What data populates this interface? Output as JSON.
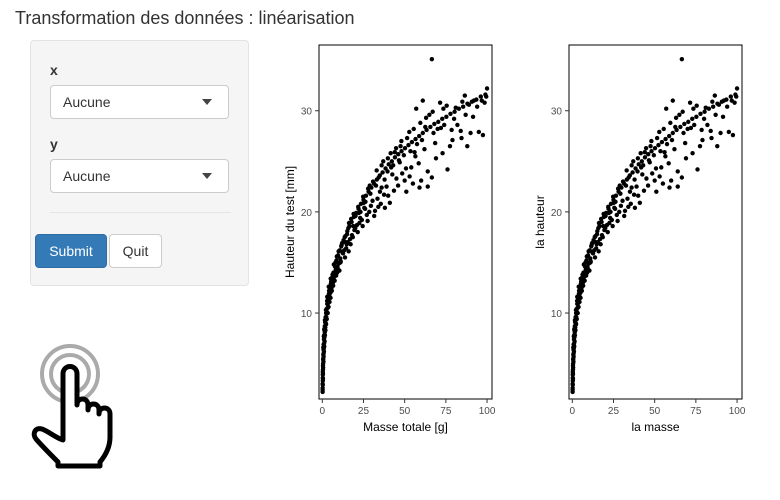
{
  "page": {
    "title": "Transformation des données : linéarisation"
  },
  "sidebar": {
    "x_label": "x",
    "x_value": "Aucune",
    "y_label": "y",
    "y_value": "Aucune",
    "submit_label": "Submit",
    "quit_label": "Quit",
    "primary_color": "#337ab7"
  },
  "hand_icon": "touch-pointer-icon",
  "chart_data": [
    {
      "type": "scatter",
      "xlabel": "Masse totale  [g]",
      "ylabel": "Hauteur du test  [mm]",
      "xlim": [
        -2,
        103
      ],
      "ylim": [
        1.5,
        36.5
      ],
      "x_ticks": [
        0,
        25,
        50,
        75,
        100
      ],
      "y_ticks": [
        10,
        20,
        30
      ],
      "grid": false,
      "note": "approx. 300 points follow h ≈ 7·m^0.33 with scatter; listed points are representative",
      "points": [
        [
          0.2,
          2.2
        ],
        [
          0.2,
          3.0
        ],
        [
          0.3,
          3.6
        ],
        [
          0.3,
          4.2
        ],
        [
          0.4,
          4.8
        ],
        [
          0.5,
          5.4
        ],
        [
          0.6,
          5.9
        ],
        [
          0.7,
          6.4
        ],
        [
          0.8,
          6.9
        ],
        [
          1.0,
          7.4
        ],
        [
          1.1,
          7.8
        ],
        [
          1.3,
          8.3
        ],
        [
          1.5,
          8.7
        ],
        [
          1.7,
          9.1
        ],
        [
          2.0,
          9.6
        ],
        [
          2.3,
          10.0
        ],
        [
          2.6,
          10.4
        ],
        [
          3.0,
          10.9
        ],
        [
          3.5,
          11.4
        ],
        [
          4.0,
          11.9
        ],
        [
          4.6,
          12.4
        ],
        [
          5.2,
          12.9
        ],
        [
          6.0,
          13.5
        ],
        [
          6.8,
          14.0
        ],
        [
          7.7,
          14.6
        ],
        [
          8.6,
          15.2
        ],
        [
          9.6,
          15.7
        ],
        [
          10.6,
          16.2
        ],
        [
          11.7,
          16.7
        ],
        [
          12.9,
          17.2
        ],
        [
          14.0,
          17.6
        ],
        [
          15.2,
          18.1
        ],
        [
          16.5,
          18.6
        ],
        [
          17.8,
          19.0
        ],
        [
          19.2,
          19.5
        ],
        [
          20.5,
          19.9
        ],
        [
          22.0,
          20.3
        ],
        [
          23.5,
          20.8
        ],
        [
          25.0,
          21.2
        ],
        [
          26.5,
          21.6
        ],
        [
          28.1,
          22.0
        ],
        [
          29.8,
          22.4
        ],
        [
          31.4,
          22.8
        ],
        [
          33.1,
          23.2
        ],
        [
          34.9,
          23.6
        ],
        [
          36.6,
          23.9
        ],
        [
          38.4,
          24.3
        ],
        [
          40.3,
          24.7
        ],
        [
          42.2,
          25.0
        ],
        [
          44.1,
          25.4
        ],
        [
          46.1,
          25.7
        ],
        [
          48.1,
          26.0
        ],
        [
          50.2,
          26.3
        ],
        [
          52.3,
          26.6
        ],
        [
          54.4,
          26.9
        ],
        [
          56.6,
          27.2
        ],
        [
          58.8,
          27.5
        ],
        [
          61.0,
          27.8
        ],
        [
          63.3,
          28.1
        ],
        [
          65.6,
          28.4
        ],
        [
          68.0,
          28.7
        ],
        [
          70.4,
          28.9
        ],
        [
          72.8,
          29.2
        ],
        [
          75.3,
          29.4
        ],
        [
          77.8,
          29.7
        ],
        [
          80.3,
          29.9
        ],
        [
          82.9,
          30.2
        ],
        [
          85.5,
          30.4
        ],
        [
          88.1,
          30.7
        ],
        [
          90.8,
          30.9
        ],
        [
          93.5,
          31.1
        ],
        [
          96.2,
          31.4
        ],
        [
          99.0,
          31.6
        ],
        [
          100.0,
          32.2
        ],
        [
          99.5,
          31.4
        ],
        [
          66.5,
          35.1
        ],
        [
          61.0,
          31.0
        ],
        [
          57.0,
          30.2
        ],
        [
          64.0,
          22.5
        ],
        [
          68.5,
          26.8
        ],
        [
          72.0,
          28.3
        ],
        [
          75.5,
          30.5
        ],
        [
          80.0,
          29.2
        ],
        [
          82.0,
          28.6
        ],
        [
          85.0,
          30.9
        ],
        [
          87.0,
          29.6
        ],
        [
          90.0,
          27.8
        ],
        [
          92.0,
          31.0
        ],
        [
          95.0,
          27.9
        ],
        [
          97.5,
          27.6
        ],
        [
          73.0,
          25.8
        ],
        [
          76.0,
          24.2
        ],
        [
          77.5,
          26.5
        ],
        [
          79.0,
          27.1
        ],
        [
          64.0,
          24.0
        ],
        [
          62.0,
          26.2
        ],
        [
          60.0,
          23.1
        ],
        [
          58.5,
          24.8
        ],
        [
          56.5,
          25.5
        ],
        [
          55.0,
          22.8
        ],
        [
          53.0,
          23.5
        ],
        [
          51.0,
          22.0
        ],
        [
          48.5,
          23.8
        ],
        [
          47.0,
          24.9
        ],
        [
          45.0,
          23.3
        ],
        [
          43.5,
          22.1
        ],
        [
          41.0,
          20.9
        ],
        [
          39.0,
          22.5
        ],
        [
          37.5,
          21.7
        ],
        [
          35.5,
          20.8
        ],
        [
          33.5,
          21.3
        ],
        [
          32.0,
          20.1
        ],
        [
          30.5,
          21.1
        ],
        [
          28.5,
          20.0
        ],
        [
          27.0,
          19.7
        ],
        [
          25.5,
          20.4
        ],
        [
          24.0,
          19.2
        ],
        [
          22.5,
          18.9
        ],
        [
          21.0,
          18.7
        ],
        [
          19.5,
          18.2
        ],
        [
          18.0,
          17.7
        ],
        [
          16.8,
          17.3
        ],
        [
          15.5,
          17.0
        ],
        [
          14.5,
          16.4
        ],
        [
          13.3,
          16.2
        ],
        [
          12.2,
          16.0
        ],
        [
          11.2,
          15.1
        ],
        [
          10.1,
          14.9
        ],
        [
          9.2,
          14.6
        ],
        [
          8.2,
          14.3
        ],
        [
          7.3,
          13.6
        ],
        [
          6.4,
          13.0
        ],
        [
          5.6,
          12.5
        ],
        [
          4.9,
          12.0
        ],
        [
          4.3,
          11.7
        ],
        [
          3.7,
          11.0
        ],
        [
          3.2,
          10.5
        ],
        [
          2.8,
          10.1
        ],
        [
          2.4,
          9.6
        ],
        [
          2.1,
          9.0
        ],
        [
          1.8,
          8.6
        ],
        [
          1.5,
          8.1
        ],
        [
          1.3,
          7.6
        ],
        [
          1.1,
          7.0
        ],
        [
          0.9,
          6.5
        ],
        [
          0.8,
          6.0
        ],
        [
          0.6,
          5.5
        ],
        [
          0.5,
          5.0
        ],
        [
          0.4,
          4.4
        ],
        [
          0.3,
          3.9
        ],
        [
          0.3,
          3.3
        ],
        [
          0.2,
          2.6
        ],
        [
          0.6,
          6.6
        ],
        [
          0.9,
          7.7
        ],
        [
          1.2,
          8.4
        ],
        [
          1.6,
          9.3
        ],
        [
          2.2,
          10.3
        ],
        [
          2.9,
          11.2
        ],
        [
          3.9,
          12.6
        ],
        [
          5.1,
          13.4
        ],
        [
          6.2,
          13.8
        ],
        [
          7.0,
          14.8
        ],
        [
          8.8,
          15.6
        ],
        [
          9.9,
          16.1
        ],
        [
          11.5,
          16.6
        ],
        [
          13.6,
          17.5
        ],
        [
          15.8,
          18.4
        ],
        [
          17.5,
          19.3
        ],
        [
          18.8,
          18.6
        ],
        [
          20.2,
          19.6
        ],
        [
          21.8,
          20.5
        ],
        [
          23.2,
          20.0
        ],
        [
          24.8,
          21.5
        ],
        [
          26.2,
          21.0
        ],
        [
          27.8,
          22.3
        ],
        [
          29.2,
          21.8
        ],
        [
          30.8,
          23.0
        ],
        [
          32.6,
          22.6
        ],
        [
          34.2,
          23.4
        ],
        [
          36.0,
          24.6
        ],
        [
          37.8,
          23.2
        ],
        [
          39.6,
          24.0
        ],
        [
          41.5,
          25.8
        ],
        [
          43.0,
          24.6
        ],
        [
          44.8,
          26.3
        ],
        [
          46.5,
          25.1
        ],
        [
          48.0,
          27.0
        ],
        [
          49.5,
          25.6
        ],
        [
          51.5,
          27.3
        ],
        [
          53.5,
          26.0
        ],
        [
          55.5,
          28.2
        ],
        [
          57.5,
          26.7
        ],
        [
          59.5,
          28.8
        ],
        [
          62.5,
          28.4
        ],
        [
          65.0,
          29.6
        ],
        [
          67.5,
          27.8
        ],
        [
          70.0,
          28.2
        ],
        [
          71.5,
          30.8
        ],
        [
          74.0,
          28.6
        ],
        [
          78.5,
          28.1
        ],
        [
          81.0,
          30.3
        ],
        [
          84.0,
          28.0
        ],
        [
          86.5,
          31.5
        ],
        [
          89.0,
          30.6
        ],
        [
          91.5,
          29.4
        ],
        [
          94.0,
          30.4
        ],
        [
          96.8,
          31.0
        ],
        [
          98.5,
          30.8
        ],
        [
          88.0,
          26.5
        ],
        [
          84.5,
          27.3
        ],
        [
          69.0,
          25.3
        ],
        [
          66.5,
          23.4
        ],
        [
          59.0,
          22.4
        ],
        [
          54.0,
          24.4
        ],
        [
          50.0,
          23.1
        ],
        [
          46.0,
          22.6
        ],
        [
          42.5,
          23.7
        ],
        [
          40.0,
          21.6
        ],
        [
          38.0,
          20.4
        ],
        [
          36.0,
          22.4
        ],
        [
          34.0,
          20.5
        ],
        [
          31.5,
          19.6
        ],
        [
          29.5,
          20.6
        ],
        [
          27.5,
          19.1
        ],
        [
          26.0,
          20.3
        ],
        [
          24.5,
          18.6
        ],
        [
          23.0,
          19.4
        ],
        [
          21.5,
          18.0
        ],
        [
          20.0,
          18.4
        ],
        [
          18.5,
          17.5
        ],
        [
          17.2,
          16.8
        ],
        [
          16.0,
          16.1
        ],
        [
          14.8,
          16.8
        ],
        [
          13.8,
          15.5
        ],
        [
          12.6,
          15.9
        ],
        [
          11.0,
          15.0
        ],
        [
          10.4,
          14.2
        ],
        [
          9.4,
          14.4
        ],
        [
          8.4,
          13.7
        ],
        [
          7.5,
          13.2
        ],
        [
          6.6,
          12.7
        ],
        [
          5.8,
          12.2
        ],
        [
          5.0,
          11.5
        ],
        [
          4.4,
          11.1
        ],
        [
          3.8,
          10.6
        ],
        [
          3.3,
          10.0
        ],
        [
          2.7,
          9.4
        ],
        [
          2.3,
          8.9
        ],
        [
          1.9,
          8.3
        ],
        [
          1.6,
          7.8
        ],
        [
          1.4,
          7.2
        ],
        [
          1.2,
          6.7
        ],
        [
          1.0,
          6.2
        ],
        [
          0.8,
          5.7
        ],
        [
          0.7,
          5.2
        ],
        [
          0.5,
          4.6
        ],
        [
          0.4,
          4.0
        ],
        [
          0.4,
          3.5
        ],
        [
          0.3,
          2.9
        ],
        [
          0.2,
          2.4
        ],
        [
          3.0,
          11.6
        ],
        [
          4.1,
          12.2
        ],
        [
          5.4,
          13.1
        ],
        [
          6.9,
          13.3
        ],
        [
          8.0,
          15.0
        ],
        [
          9.0,
          14.0
        ],
        [
          10.9,
          15.4
        ],
        [
          12.0,
          16.9
        ],
        [
          14.2,
          17.0
        ],
        [
          15.0,
          17.8
        ],
        [
          16.2,
          18.9
        ],
        [
          19.0,
          19.8
        ],
        [
          22.2,
          19.9
        ],
        [
          25.2,
          20.9
        ],
        [
          28.8,
          22.6
        ],
        [
          33.0,
          24.1
        ],
        [
          35.0,
          22.0
        ],
        [
          37.0,
          25.0
        ],
        [
          39.8,
          25.3
        ],
        [
          41.8,
          24.4
        ],
        [
          44.0,
          25.9
        ],
        [
          47.5,
          26.5
        ],
        [
          50.8,
          24.3
        ],
        [
          52.8,
          27.9
        ],
        [
          56.0,
          25.9
        ],
        [
          60.5,
          27.1
        ],
        [
          63.0,
          29.3
        ],
        [
          67.0,
          29.9
        ],
        [
          73.5,
          30.2
        ]
      ]
    },
    {
      "type": "scatter",
      "xlabel": "la masse",
      "ylabel": "la hauteur",
      "xlim": [
        -2,
        103
      ],
      "ylim": [
        1.5,
        36.5
      ],
      "x_ticks": [
        0,
        25,
        50,
        75,
        100
      ],
      "y_ticks": [
        10,
        20,
        30
      ],
      "grid": false,
      "note": "same data as the first chart",
      "points": "same"
    }
  ]
}
